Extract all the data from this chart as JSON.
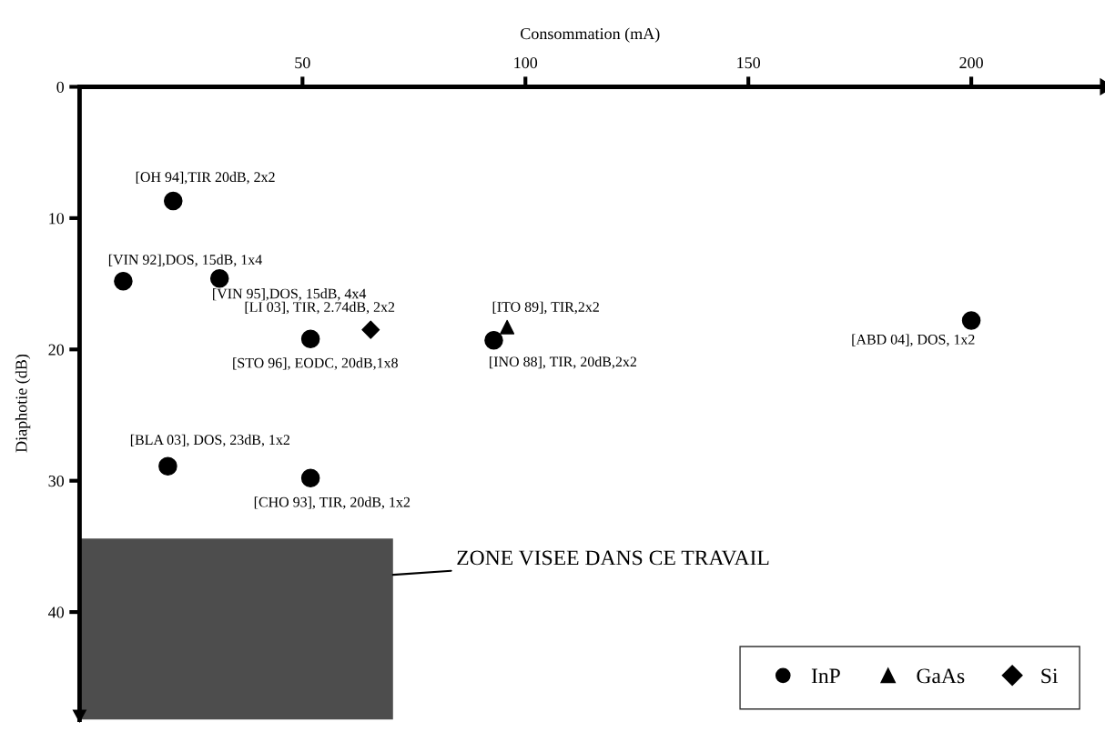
{
  "chart_data": {
    "type": "scatter",
    "xlabel": "Consommation (mA)",
    "ylabel": "Diaphotie (dB)",
    "xlim": [
      0,
      229
    ],
    "xticks": [
      50,
      100,
      150,
      200
    ],
    "ylim": [
      48.2,
      0
    ],
    "yticks": [
      0,
      10,
      20,
      30,
      40
    ],
    "grid": false,
    "legend": "bottom right",
    "series": [
      {
        "name": "InP",
        "color": "#000000",
        "marker": "circle",
        "x": [
          21,
          9.8,
          31.4,
          51.8,
          92.9,
          200,
          19.8,
          51.8
        ],
        "values": [
          8.7,
          14.8,
          14.6,
          19.2,
          19.3,
          17.8,
          28.9,
          29.8
        ],
        "value_labels": [
          "[OH 94],TIR 20dB, 2x2",
          "[VIN 92],DOS, 15dB, 1x4",
          "[VIN 95],DOS, 15dB, 4x4",
          "[STO 96], EODC, 20dB,1x8",
          "[INO 88], TIR, 20dB,2x2",
          "[ABD 04], DOS, 1x2",
          "[BLA 03], DOS, 23dB, 1x2",
          "[CHO 93], TIR, 20dB, 1x2"
        ]
      },
      {
        "name": "GaAs",
        "color": "#000000",
        "marker": "triangle",
        "x": [
          95.9
        ],
        "values": [
          18.3
        ],
        "value_labels": [
          "[ITO 89], TIR,2x2"
        ]
      },
      {
        "name": "Si",
        "color": "#000000",
        "marker": "diamond",
        "x": [
          65.3
        ],
        "values": [
          18.5
        ],
        "value_labels": [
          "[LI 03], TIR, 2.74dB, 2x2"
        ]
      }
    ],
    "bands": [
      {
        "axis": "y",
        "from": 34.4,
        "to": 48.2,
        "color": "#4d4d4d",
        "label": "ZONE VISEE DANS CE TRAVAIL"
      }
    ]
  }
}
